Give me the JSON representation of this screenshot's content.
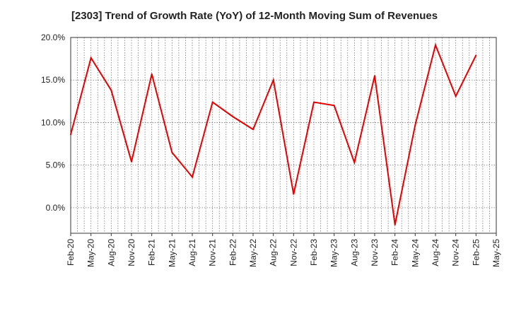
{
  "chart_data": {
    "type": "line",
    "title": "[2303]  Trend of Growth Rate (YoY) of 12-Month Moving Sum of Revenues",
    "xlabel": "",
    "ylabel": "",
    "ylim": [
      -3.0,
      20.0
    ],
    "yticks": [
      "20.0%",
      "15.0%",
      "10.0%",
      "5.0%",
      "0.0%"
    ],
    "ytick_values": [
      20,
      15,
      10,
      5,
      0
    ],
    "xtick_labels": [
      "Feb-20",
      "May-20",
      "Aug-20",
      "Nov-20",
      "Feb-21",
      "May-21",
      "Aug-21",
      "Nov-21",
      "Feb-22",
      "May-22",
      "Aug-22",
      "Nov-22",
      "Feb-23",
      "May-23",
      "Aug-23",
      "Nov-23",
      "Feb-24",
      "May-24",
      "Aug-24",
      "Nov-24",
      "Feb-25",
      "May-25"
    ],
    "grid": true,
    "line_color": "#e60000",
    "x": [
      "Feb-20",
      "May-20",
      "Aug-20",
      "Nov-20",
      "Feb-21",
      "May-21",
      "Aug-21",
      "Nov-21",
      "Feb-22",
      "May-22",
      "Aug-22",
      "Nov-22",
      "Feb-23",
      "May-23",
      "Aug-23",
      "Nov-23",
      "Feb-24",
      "May-24",
      "Aug-24",
      "Nov-24",
      "Feb-25"
    ],
    "series": [
      {
        "values": [
          8.6,
          17.6,
          13.8,
          5.4,
          15.7,
          6.5,
          3.6,
          12.4,
          10.7,
          9.2,
          15.0,
          1.6,
          12.4,
          12.0,
          5.3,
          15.5,
          -2.0,
          9.7,
          19.1,
          13.1,
          17.9
        ]
      }
    ]
  }
}
